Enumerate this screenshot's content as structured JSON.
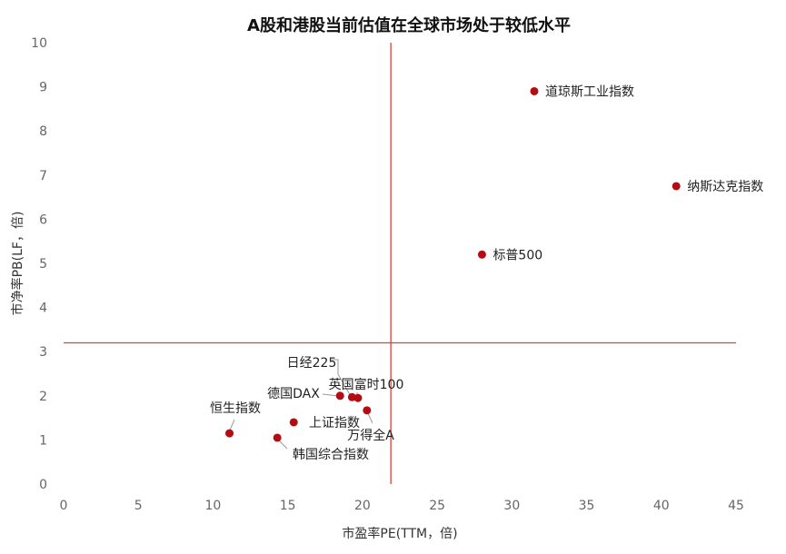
{
  "chart_data": {
    "type": "scatter",
    "title": "A股和港股当前估值在全球市场处于较低水平",
    "xlabel": "市盈率PE(TTM，倍)",
    "ylabel": "市净率PB(LF，倍)",
    "xlim": [
      0,
      45
    ],
    "ylim": [
      0,
      10
    ],
    "xticks": [
      0,
      5,
      10,
      15,
      20,
      25,
      30,
      35,
      40,
      45
    ],
    "yticks": [
      0,
      1,
      2,
      3,
      4,
      5,
      6,
      7,
      8,
      9,
      10
    ],
    "grid": false,
    "reference_lines": {
      "x": 21.9,
      "y": 3.2,
      "color": "#e0403a"
    },
    "point_color": "#b30d12",
    "points": [
      {
        "label": "道琼斯工业指数",
        "x": 31.5,
        "y": 8.9
      },
      {
        "label": "纳斯达克指数",
        "x": 41.0,
        "y": 6.75
      },
      {
        "label": "标普500",
        "x": 28.0,
        "y": 5.2
      },
      {
        "label": "日经225",
        "x": 19.3,
        "y": 1.97
      },
      {
        "label": "英国富时100",
        "x": 19.7,
        "y": 1.95
      },
      {
        "label": "德国DAX",
        "x": 18.5,
        "y": 2.0
      },
      {
        "label": "万得全A",
        "x": 20.3,
        "y": 1.67
      },
      {
        "label": "上证指数",
        "x": 15.4,
        "y": 1.4
      },
      {
        "label": "恒生指数",
        "x": 11.1,
        "y": 1.15
      },
      {
        "label": "韩国综合指数",
        "x": 14.3,
        "y": 1.05
      }
    ]
  }
}
